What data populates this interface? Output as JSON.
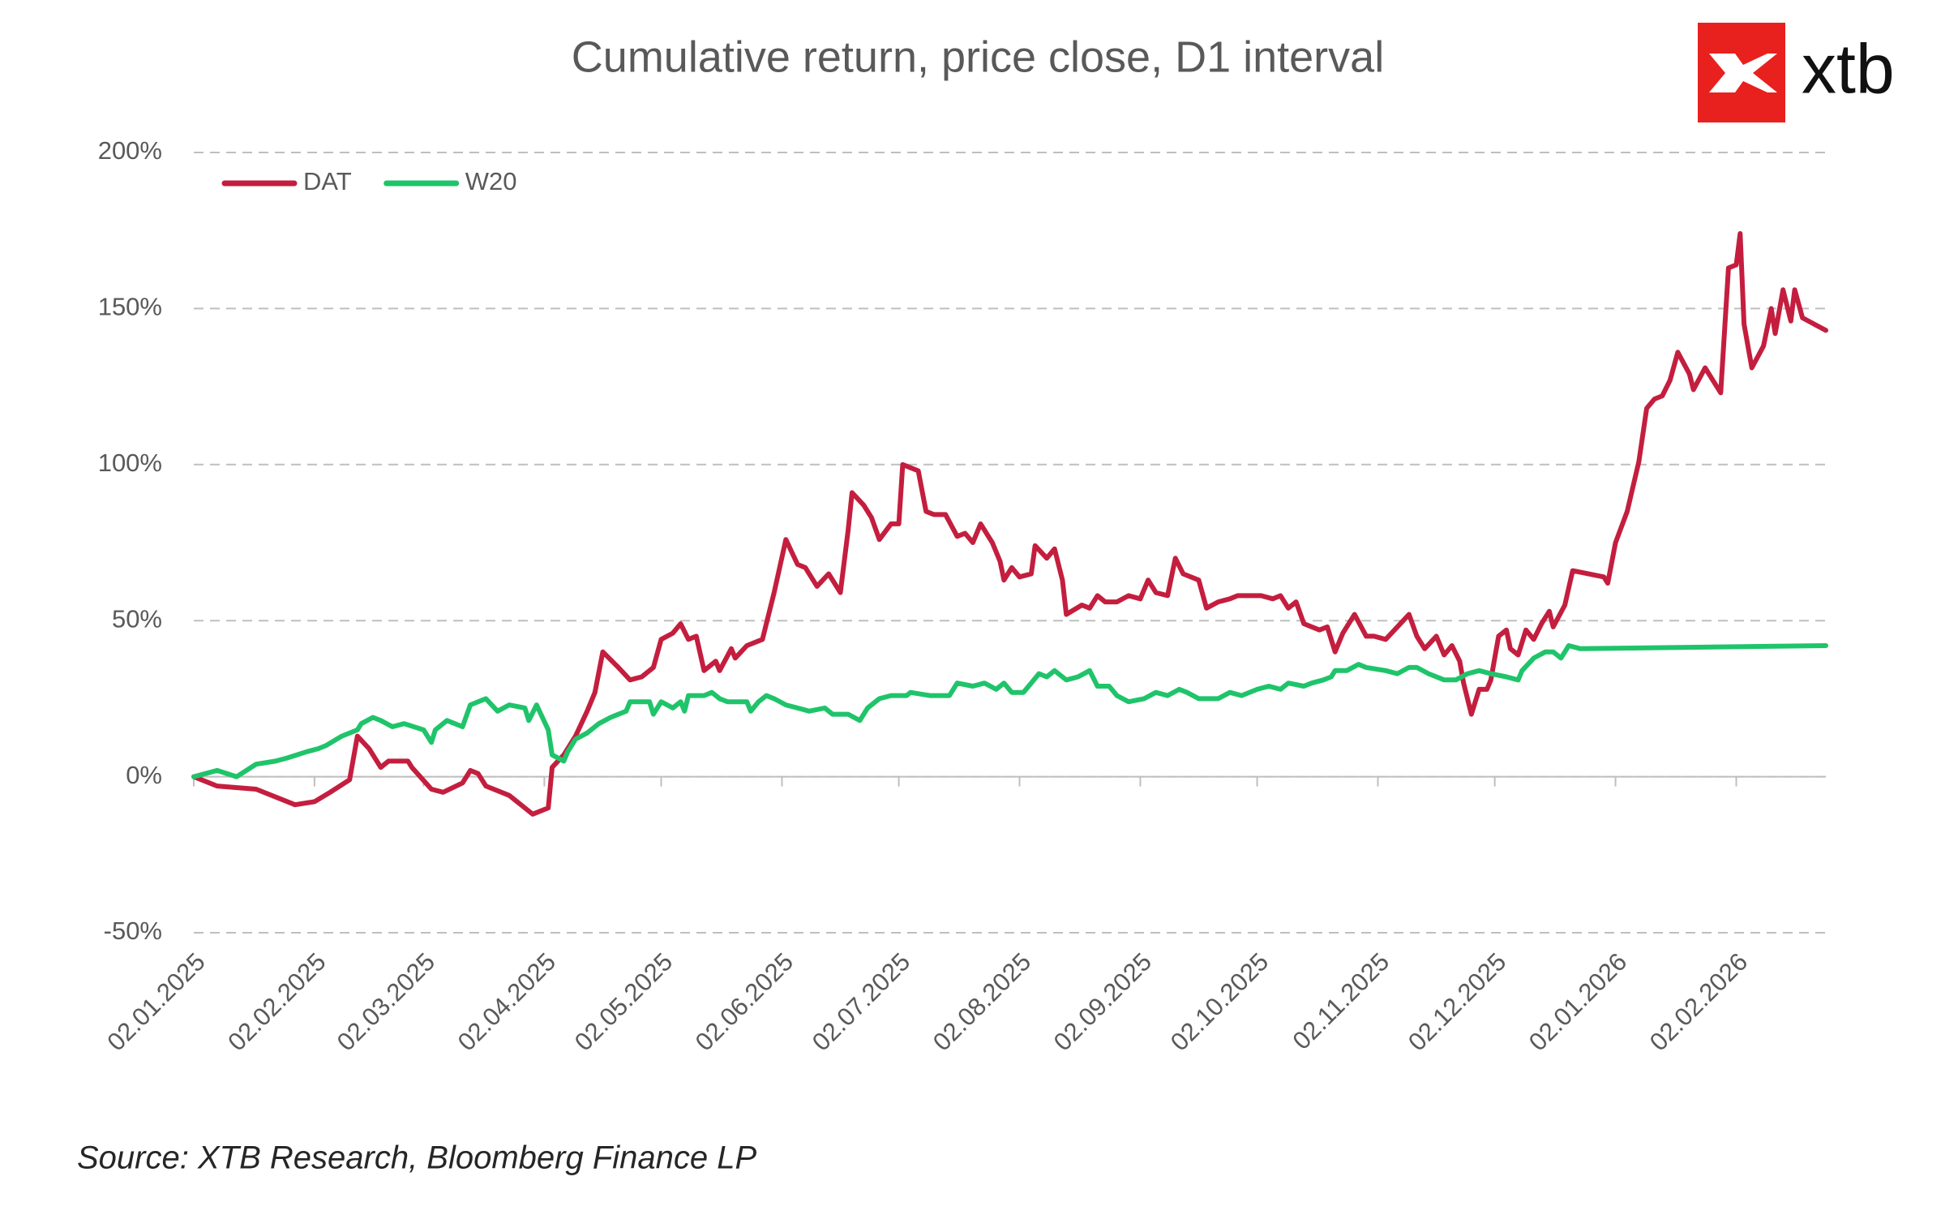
{
  "chart_data": {
    "type": "line",
    "title": "Cumulative return, price close, D1 interval",
    "source": "Source: XTB Research, Bloomberg Finance LP",
    "logo": "xtb",
    "ylim": [
      -50,
      200
    ],
    "yticks": [
      {
        "value": -50,
        "label": "-50%"
      },
      {
        "value": 0,
        "label": "0%"
      },
      {
        "value": 50,
        "label": "50%"
      },
      {
        "value": 100,
        "label": "100%"
      },
      {
        "value": 150,
        "label": "150%"
      },
      {
        "value": 200,
        "label": "200%"
      }
    ],
    "xlim": [
      "02.01.2025",
      "25.02.2026"
    ],
    "xticks": [
      "02.01.2025",
      "02.02.2025",
      "02.03.2025",
      "02.04.2025",
      "02.05.2025",
      "02.06.2025",
      "02.07.2025",
      "02.08.2025",
      "02.09.2025",
      "02.10.2025",
      "02.11.2025",
      "02.12.2025",
      "02.01.2026",
      "02.02.2026"
    ],
    "grid": true,
    "legend": "top-left",
    "series": [
      {
        "name": "DAT",
        "color": "#c41e3f",
        "x": [
          "02.01.2025",
          "08.01.2025",
          "18.01.2025",
          "28.01.2025",
          "02.02.2025",
          "06.02.2025",
          "11.02.2025",
          "13.02.2025",
          "16.02.2025",
          "19.02.2025",
          "21.02.2025",
          "26.02.2025",
          "27.02.2025",
          "04.03.2025",
          "07.03.2025",
          "12.03.2025",
          "14.03.2025",
          "16.03.2025",
          "18.03.2025",
          "24.03.2025",
          "30.03.2025",
          "03.04.2025",
          "04.04.2025",
          "07.04.2025",
          "10.04.2025",
          "13.04.2025",
          "15.04.2025",
          "17.04.2025",
          "21.04.2025",
          "24.04.2025",
          "27.04.2025",
          "30.04.2025",
          "02.05.2025",
          "05.05.2025",
          "07.05.2025",
          "09.05.2025",
          "11.05.2025",
          "13.05.2025",
          "16.05.2025",
          "17.05.2025",
          "20.05.2025",
          "21.05.2025",
          "24.05.2025",
          "28.05.2025",
          "29.05.2025",
          "31.05.2025",
          "03.06.2025",
          "06.06.2025",
          "08.06.2025",
          "11.06.2025",
          "14.06.2025",
          "17.06.2025",
          "19.06.2025",
          "20.06.2025",
          "23.06.2025",
          "25.06.2025",
          "27.06.2025",
          "30.06.2025",
          "02.07.2025",
          "03.07.2025",
          "07.07.2025",
          "09.07.2025",
          "11.07.2025",
          "14.07.2025",
          "17.07.2025",
          "19.07.2025",
          "21.07.2025",
          "23.07.2025",
          "26.07.2025",
          "28.07.2025",
          "29.07.2025",
          "31.07.2025",
          "02.08.2025",
          "05.08.2025",
          "06.08.2025",
          "09.08.2025",
          "11.08.2025",
          "13.08.2025",
          "14.08.2025",
          "18.08.2025",
          "20.08.2025",
          "22.08.2025",
          "24.08.2025",
          "27.08.2025",
          "30.08.2025",
          "02.09.2025",
          "04.09.2025",
          "06.09.2025",
          "09.09.2025",
          "11.09.2025",
          "13.09.2025",
          "17.09.2025",
          "19.09.2025",
          "22.09.2025",
          "25.09.2025",
          "27.09.2025",
          "30.09.2025",
          "03.10.2025",
          "06.10.2025",
          "08.10.2025",
          "10.10.2025",
          "12.10.2025",
          "14.10.2025",
          "18.10.2025",
          "20.10.2025",
          "22.10.2025",
          "24.10.2025",
          "27.10.2025",
          "30.10.2025",
          "01.11.2025",
          "04.11.2025",
          "07.11.2025",
          "10.11.2025",
          "12.11.2025",
          "14.11.2025",
          "17.11.2025",
          "19.11.2025",
          "21.11.2025",
          "23.11.2025",
          "24.11.2025",
          "26.11.2025",
          "28.11.2025",
          "30.11.2025",
          "01.12.2025",
          "03.12.2025",
          "05.12.2025",
          "06.12.2025",
          "08.12.2025",
          "10.12.2025",
          "12.12.2025",
          "14.12.2025",
          "16.12.2025",
          "17.12.2025",
          "20.12.2025",
          "22.12.2025",
          "30.12.2025",
          "31.12.2025",
          "02.01.2026",
          "05.01.2026",
          "08.01.2026",
          "10.01.2026",
          "12.01.2026",
          "14.01.2026",
          "16.01.2026",
          "18.01.2026",
          "21.01.2026",
          "22.01.2026",
          "25.01.2026",
          "27.01.2026",
          "29.01.2026",
          "31.01.2026",
          "02.02.2026",
          "03.02.2026",
          "04.02.2026",
          "06.02.2026",
          "09.02.2026",
          "11.02.2026",
          "12.02.2026",
          "14.02.2026",
          "16.02.2026",
          "17.02.2026",
          "19.02.2026",
          "22.02.2026",
          "25.02.2026"
        ],
        "values": [
          0,
          -3,
          -4,
          -9,
          -8,
          -5,
          -1,
          13,
          9,
          3,
          5,
          5,
          3,
          -4,
          -5,
          -2,
          2,
          1,
          -3,
          -6,
          -12,
          -10,
          3,
          7,
          13,
          21,
          27,
          40,
          35,
          31,
          32,
          35,
          44,
          46,
          49,
          44,
          45,
          34,
          37,
          34,
          41,
          38,
          42,
          44,
          49,
          59,
          76,
          68,
          67,
          61,
          65,
          59,
          79,
          91,
          87,
          83,
          76,
          81,
          81,
          100,
          98,
          85,
          84,
          84,
          77,
          78,
          75,
          81,
          75,
          69,
          63,
          67,
          64,
          65,
          74,
          70,
          73,
          63,
          52,
          55,
          54,
          58,
          56,
          56,
          58,
          57,
          63,
          59,
          58,
          70,
          65,
          63,
          54,
          56,
          57,
          58,
          58,
          58,
          57,
          58,
          54,
          56,
          49,
          47,
          48,
          40,
          46,
          52,
          45,
          45,
          44,
          48,
          52,
          45,
          41,
          45,
          39,
          42,
          37,
          30,
          20,
          28,
          28,
          31,
          45,
          47,
          41,
          39,
          47,
          44,
          49,
          53,
          48,
          55,
          66,
          64,
          62,
          75,
          85,
          101,
          118,
          121,
          122,
          127,
          136,
          129,
          124,
          131,
          127,
          123,
          163,
          164,
          174,
          145,
          131,
          138,
          150,
          142,
          156,
          146,
          156,
          147,
          145,
          143
        ]
      },
      {
        "name": "W20",
        "color": "#1fc46a",
        "x": [
          "02.01.2025",
          "08.01.2025",
          "13.01.2025",
          "18.01.2025",
          "23.01.2025",
          "26.01.2025",
          "31.01.2025",
          "03.02.2025",
          "05.02.2025",
          "09.02.2025",
          "13.02.2025",
          "14.02.2025",
          "17.02.2025",
          "19.02.2025",
          "22.02.2025",
          "25.02.2025",
          "02.03.2025",
          "04.03.2025",
          "05.03.2025",
          "08.03.2025",
          "12.03.2025",
          "14.03.2025",
          "18.03.2025",
          "21.03.2025",
          "24.03.2025",
          "28.03.2025",
          "29.03.2025",
          "31.03.2025",
          "03.04.2025",
          "04.04.2025",
          "07.04.2025",
          "08.04.2025",
          "10.04.2025",
          "13.04.2025",
          "16.04.2025",
          "19.04.2025",
          "23.04.2025",
          "24.04.2025",
          "29.04.2025",
          "30.04.2025",
          "02.05.2025",
          "05.05.2025",
          "07.05.2025",
          "08.05.2025",
          "09.05.2025",
          "13.05.2025",
          "15.05.2025",
          "17.05.2025",
          "19.05.2025",
          "24.05.2025",
          "25.05.2025",
          "27.05.2025",
          "29.05.2025",
          "31.05.2025",
          "03.06.2025",
          "06.06.2025",
          "09.06.2025",
          "13.06.2025",
          "15.06.2025",
          "19.06.2025",
          "22.06.2025",
          "24.06.2025",
          "27.06.2025",
          "30.06.2025",
          "04.07.2025",
          "05.07.2025",
          "10.07.2025",
          "15.07.2025",
          "17.07.2025",
          "21.07.2025",
          "24.07.2025",
          "27.07.2025",
          "29.07.2025",
          "31.07.2025",
          "03.08.2025",
          "05.08.2025",
          "07.08.2025",
          "09.08.2025",
          "11.08.2025",
          "14.08.2025",
          "17.08.2025",
          "20.08.2025",
          "22.08.2025",
          "25.08.2025",
          "27.08.2025",
          "30.08.2025",
          "03.09.2025",
          "06.09.2025",
          "09.09.2025",
          "12.09.2025",
          "14.09.2025",
          "17.09.2025",
          "22.09.2025",
          "25.09.2025",
          "28.09.2025",
          "02.10.2025",
          "05.10.2025",
          "08.10.2025",
          "10.10.2025",
          "14.10.2025",
          "16.10.2025",
          "19.10.2025",
          "21.10.2025",
          "22.10.2025",
          "25.10.2025",
          "28.10.2025",
          "30.10.2025",
          "04.11.2025",
          "07.11.2025",
          "10.11.2025",
          "12.11.2025",
          "15.11.2025",
          "19.11.2025",
          "22.11.2025",
          "25.11.2025",
          "28.11.2025",
          "01.12.2025",
          "05.12.2025",
          "08.12.2025",
          "09.12.2025",
          "12.12.2025",
          "15.12.2025",
          "17.12.2025",
          "19.12.2025",
          "21.12.2025",
          "24.12.2025",
          "25.02.2026"
        ],
        "values": [
          0,
          2,
          0,
          4,
          5,
          6,
          8,
          9,
          10,
          13,
          15,
          17,
          19,
          18,
          16,
          17,
          15,
          11,
          15,
          18,
          16,
          23,
          25,
          21,
          23,
          22,
          18,
          23,
          15,
          7,
          5,
          8,
          12,
          14,
          17,
          19,
          21,
          24,
          24,
          20,
          24,
          22,
          24,
          21,
          26,
          26,
          27,
          25,
          24,
          24,
          21,
          24,
          26,
          25,
          23,
          22,
          21,
          22,
          20,
          20,
          18,
          22,
          25,
          26,
          26,
          27,
          26,
          26,
          30,
          29,
          30,
          28,
          30,
          27,
          27,
          30,
          33,
          32,
          34,
          31,
          32,
          34,
          29,
          29,
          26,
          24,
          25,
          27,
          26,
          28,
          27,
          25,
          25,
          27,
          26,
          28,
          29,
          28,
          30,
          29,
          30,
          31,
          32,
          34,
          34,
          36,
          35,
          34,
          33,
          35,
          35,
          33,
          31,
          31,
          33,
          34,
          33,
          32,
          31,
          34,
          38,
          40,
          40,
          38,
          42,
          41,
          42
        ]
      }
    ]
  }
}
